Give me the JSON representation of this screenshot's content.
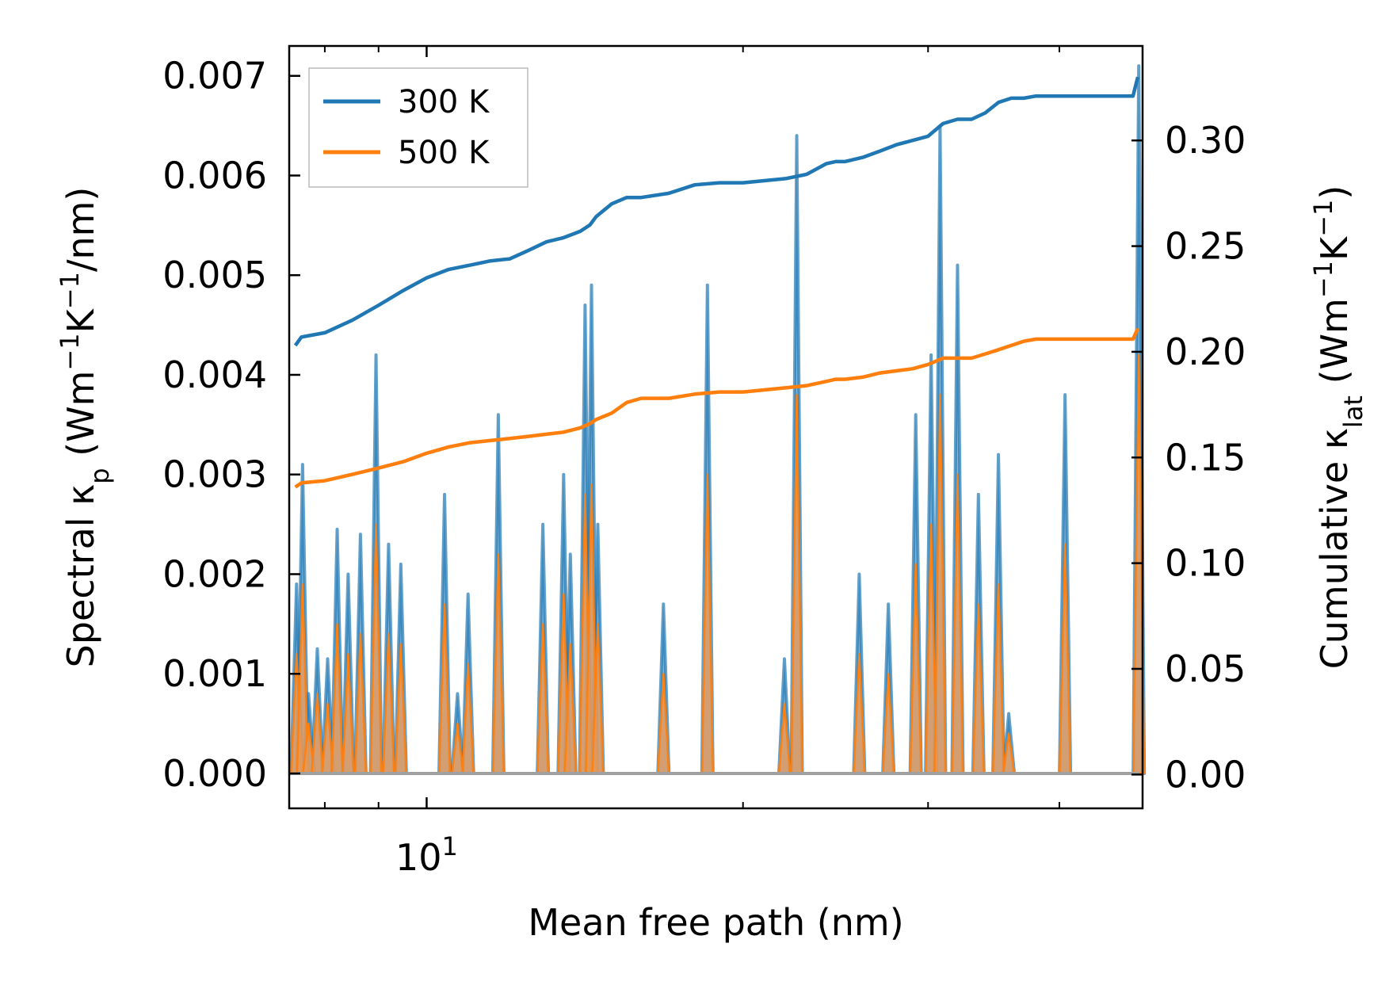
{
  "chart_data": {
    "type": "line",
    "subtype": "spectral-and-cumulative",
    "xlabel": "Mean free path (nm)",
    "xscale": "log",
    "xlim": [
      7.4,
      48.0
    ],
    "x_major_tick_labels": [
      {
        "value": 10,
        "label": "10",
        "exponent": "1"
      }
    ],
    "x_minor_ticks": [
      8,
      9,
      20,
      30,
      40
    ],
    "y_left": {
      "label_parts": [
        "Spectral κ",
        "p",
        " (Wm",
        "−1",
        "K",
        "−1",
        "/nm)"
      ],
      "ylim": [
        -0.00035,
        0.0073
      ],
      "ticks": [
        0.0,
        0.001,
        0.002,
        0.003,
        0.004,
        0.005,
        0.006,
        0.007
      ],
      "tick_labels": [
        "0.000",
        "0.001",
        "0.002",
        "0.003",
        "0.004",
        "0.005",
        "0.006",
        "0.007"
      ]
    },
    "y_right": {
      "label_parts": [
        "Cumulative κ",
        "lat",
        " (Wm",
        "−1",
        "K",
        "−1",
        ")"
      ],
      "ylim": [
        -0.016,
        0.3447
      ],
      "ticks": [
        0.0,
        0.05,
        0.1,
        0.15,
        0.2,
        0.25,
        0.3
      ],
      "tick_labels": [
        "0.00",
        "0.05",
        "0.10",
        "0.15",
        "0.20",
        "0.25",
        "0.30"
      ]
    },
    "legend": {
      "position": "top-left",
      "entries": [
        "300 K",
        "500 K"
      ]
    },
    "colors": {
      "300K": "#1f77b4",
      "500K": "#ff7f0e",
      "fill_300K": "#1f77b4",
      "fill_500K": "#e09a5f"
    },
    "series": [
      {
        "name": "300 K",
        "kind": "cumulative",
        "axis": "right",
        "x": [
          7.5,
          7.6,
          8.0,
          8.5,
          9.0,
          9.5,
          10.0,
          10.5,
          11.0,
          11.5,
          12.0,
          12.5,
          13.0,
          13.5,
          14.0,
          14.3,
          14.5,
          15.0,
          15.5,
          16.0,
          17.0,
          18.0,
          19.0,
          20.0,
          21.0,
          22.0,
          23.0,
          24.0,
          24.5,
          25.0,
          26.0,
          27.0,
          28.0,
          29.0,
          30.0,
          31.0,
          32.0,
          33.0,
          34.0,
          35.0,
          36.0,
          37.0,
          38.0,
          40.0,
          43.0,
          47.0,
          47.5
        ],
        "y": [
          0.203,
          0.207,
          0.209,
          0.215,
          0.222,
          0.229,
          0.235,
          0.239,
          0.241,
          0.243,
          0.244,
          0.248,
          0.252,
          0.254,
          0.257,
          0.26,
          0.264,
          0.27,
          0.273,
          0.273,
          0.275,
          0.279,
          0.28,
          0.28,
          0.281,
          0.282,
          0.284,
          0.289,
          0.29,
          0.29,
          0.292,
          0.295,
          0.298,
          0.3,
          0.302,
          0.308,
          0.31,
          0.31,
          0.313,
          0.318,
          0.32,
          0.32,
          0.321,
          0.321,
          0.321,
          0.321,
          0.33
        ]
      },
      {
        "name": "500 K",
        "kind": "cumulative",
        "axis": "right",
        "x": [
          7.5,
          7.6,
          8.0,
          8.5,
          9.0,
          9.5,
          10.0,
          10.5,
          11.0,
          11.5,
          12.0,
          12.5,
          13.0,
          13.5,
          14.0,
          14.3,
          14.5,
          15.0,
          15.5,
          16.0,
          17.0,
          18.0,
          19.0,
          20.0,
          21.0,
          22.0,
          23.0,
          24.0,
          24.5,
          25.0,
          26.0,
          27.0,
          28.0,
          29.0,
          30.0,
          31.0,
          32.0,
          33.0,
          34.0,
          35.0,
          36.0,
          37.0,
          38.0,
          40.0,
          43.0,
          47.0,
          47.5
        ],
        "y": [
          0.136,
          0.138,
          0.139,
          0.142,
          0.145,
          0.148,
          0.152,
          0.155,
          0.157,
          0.158,
          0.159,
          0.16,
          0.161,
          0.162,
          0.164,
          0.166,
          0.168,
          0.171,
          0.176,
          0.178,
          0.178,
          0.18,
          0.181,
          0.181,
          0.182,
          0.183,
          0.184,
          0.186,
          0.187,
          0.187,
          0.188,
          0.19,
          0.191,
          0.192,
          0.194,
          0.197,
          0.197,
          0.197,
          0.199,
          0.201,
          0.203,
          0.205,
          0.206,
          0.206,
          0.206,
          0.206,
          0.211
        ]
      },
      {
        "name": "300 K spectral",
        "kind": "spectral",
        "axis": "left",
        "x": [
          7.52,
          7.62,
          7.72,
          7.87,
          8.05,
          8.22,
          8.42,
          8.65,
          8.95,
          9.2,
          9.45,
          10.4,
          10.7,
          10.95,
          11.7,
          12.9,
          13.5,
          13.7,
          14.15,
          14.35,
          14.55,
          16.8,
          18.5,
          21.9,
          22.5,
          25.8,
          27.5,
          29.2,
          30.2,
          30.8,
          32.0,
          33.5,
          35.0,
          35.8,
          40.5,
          47.6
        ],
        "y": [
          0.0019,
          0.0031,
          0.0008,
          0.00125,
          0.00115,
          0.00245,
          0.002,
          0.0024,
          0.0042,
          0.0023,
          0.0021,
          0.0028,
          0.0008,
          0.0018,
          0.0036,
          0.0025,
          0.003,
          0.0022,
          0.0047,
          0.0049,
          0.0025,
          0.0017,
          0.0049,
          0.00115,
          0.0064,
          0.002,
          0.0017,
          0.0036,
          0.0042,
          0.0065,
          0.0051,
          0.0028,
          0.0032,
          0.0006,
          0.0038,
          0.0071
        ]
      },
      {
        "name": "500 K spectral",
        "kind": "spectral",
        "axis": "left",
        "x": [
          7.52,
          7.62,
          7.72,
          7.87,
          8.05,
          8.22,
          8.42,
          8.65,
          8.95,
          9.2,
          9.45,
          10.4,
          10.7,
          10.95,
          11.7,
          12.9,
          13.5,
          13.7,
          14.15,
          14.35,
          14.55,
          16.8,
          18.5,
          21.9,
          22.5,
          25.8,
          27.5,
          29.2,
          30.2,
          30.8,
          32.0,
          33.5,
          35.0,
          35.8,
          40.5,
          47.6
        ],
        "y": [
          0.0012,
          0.0019,
          0.0005,
          0.0008,
          0.0007,
          0.0015,
          0.0012,
          0.0014,
          0.0025,
          0.0014,
          0.0013,
          0.0017,
          0.0005,
          0.0011,
          0.0022,
          0.0015,
          0.0018,
          0.0013,
          0.0028,
          0.0029,
          0.0015,
          0.001,
          0.003,
          0.0007,
          0.0038,
          0.0012,
          0.001,
          0.0021,
          0.0025,
          0.0038,
          0.003,
          0.0017,
          0.0019,
          0.0004,
          0.0023,
          0.0042
        ]
      }
    ]
  }
}
